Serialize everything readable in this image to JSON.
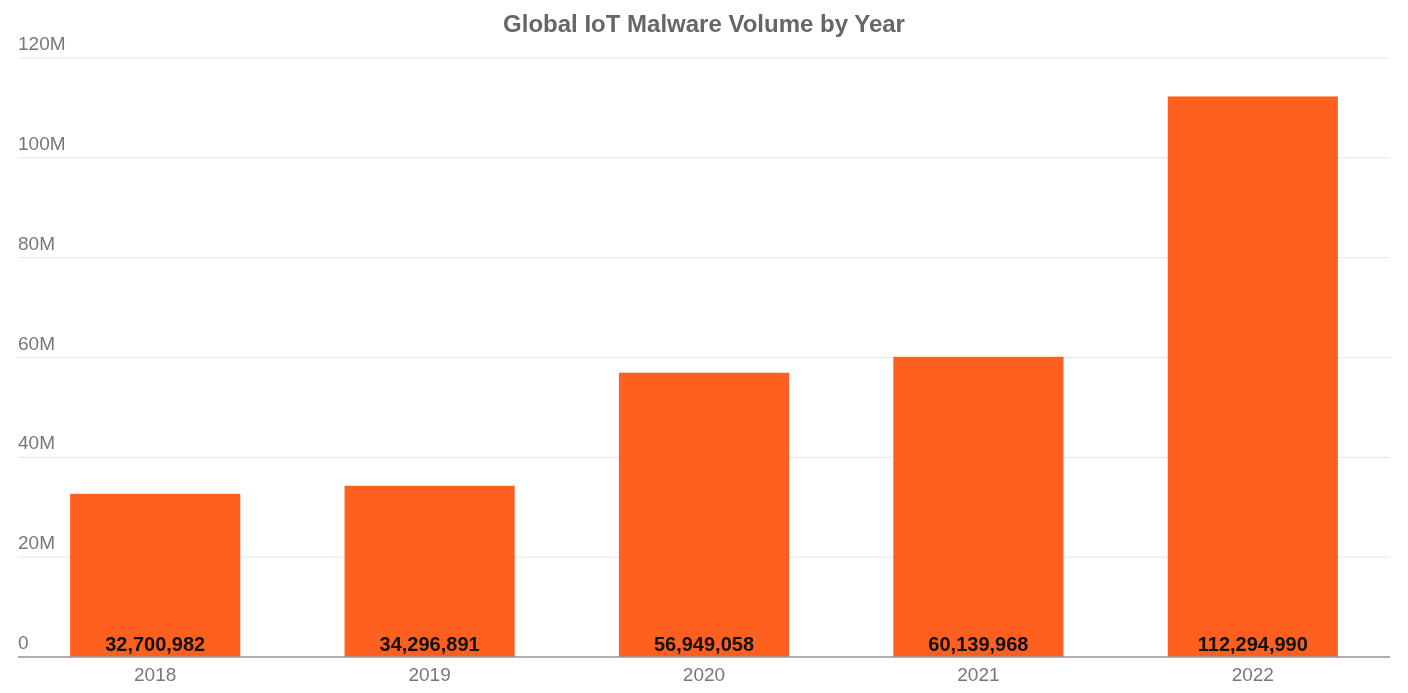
{
  "chart_data": {
    "type": "bar",
    "title": "Global IoT Malware Volume by Year",
    "categories": [
      "2018",
      "2019",
      "2020",
      "2021",
      "2022"
    ],
    "values": [
      32700982,
      34296891,
      56949058,
      60139968,
      112294990
    ],
    "color": "#ff5f1f",
    "ylim": [
      0,
      120000000
    ],
    "yticks": [
      {
        "value": 0,
        "label": "0"
      },
      {
        "value": 20000000,
        "label": "20M"
      },
      {
        "value": 40000000,
        "label": "40M"
      },
      {
        "value": 60000000,
        "label": "60M"
      },
      {
        "value": 80000000,
        "label": "80M"
      },
      {
        "value": 100000000,
        "label": "100M"
      },
      {
        "value": 120000000,
        "label": "120M"
      }
    ],
    "value_labels": [
      "32,700,982",
      "34,296,891",
      "56,949,058",
      "60,139,968",
      "112,294,990"
    ],
    "grid": "y"
  }
}
